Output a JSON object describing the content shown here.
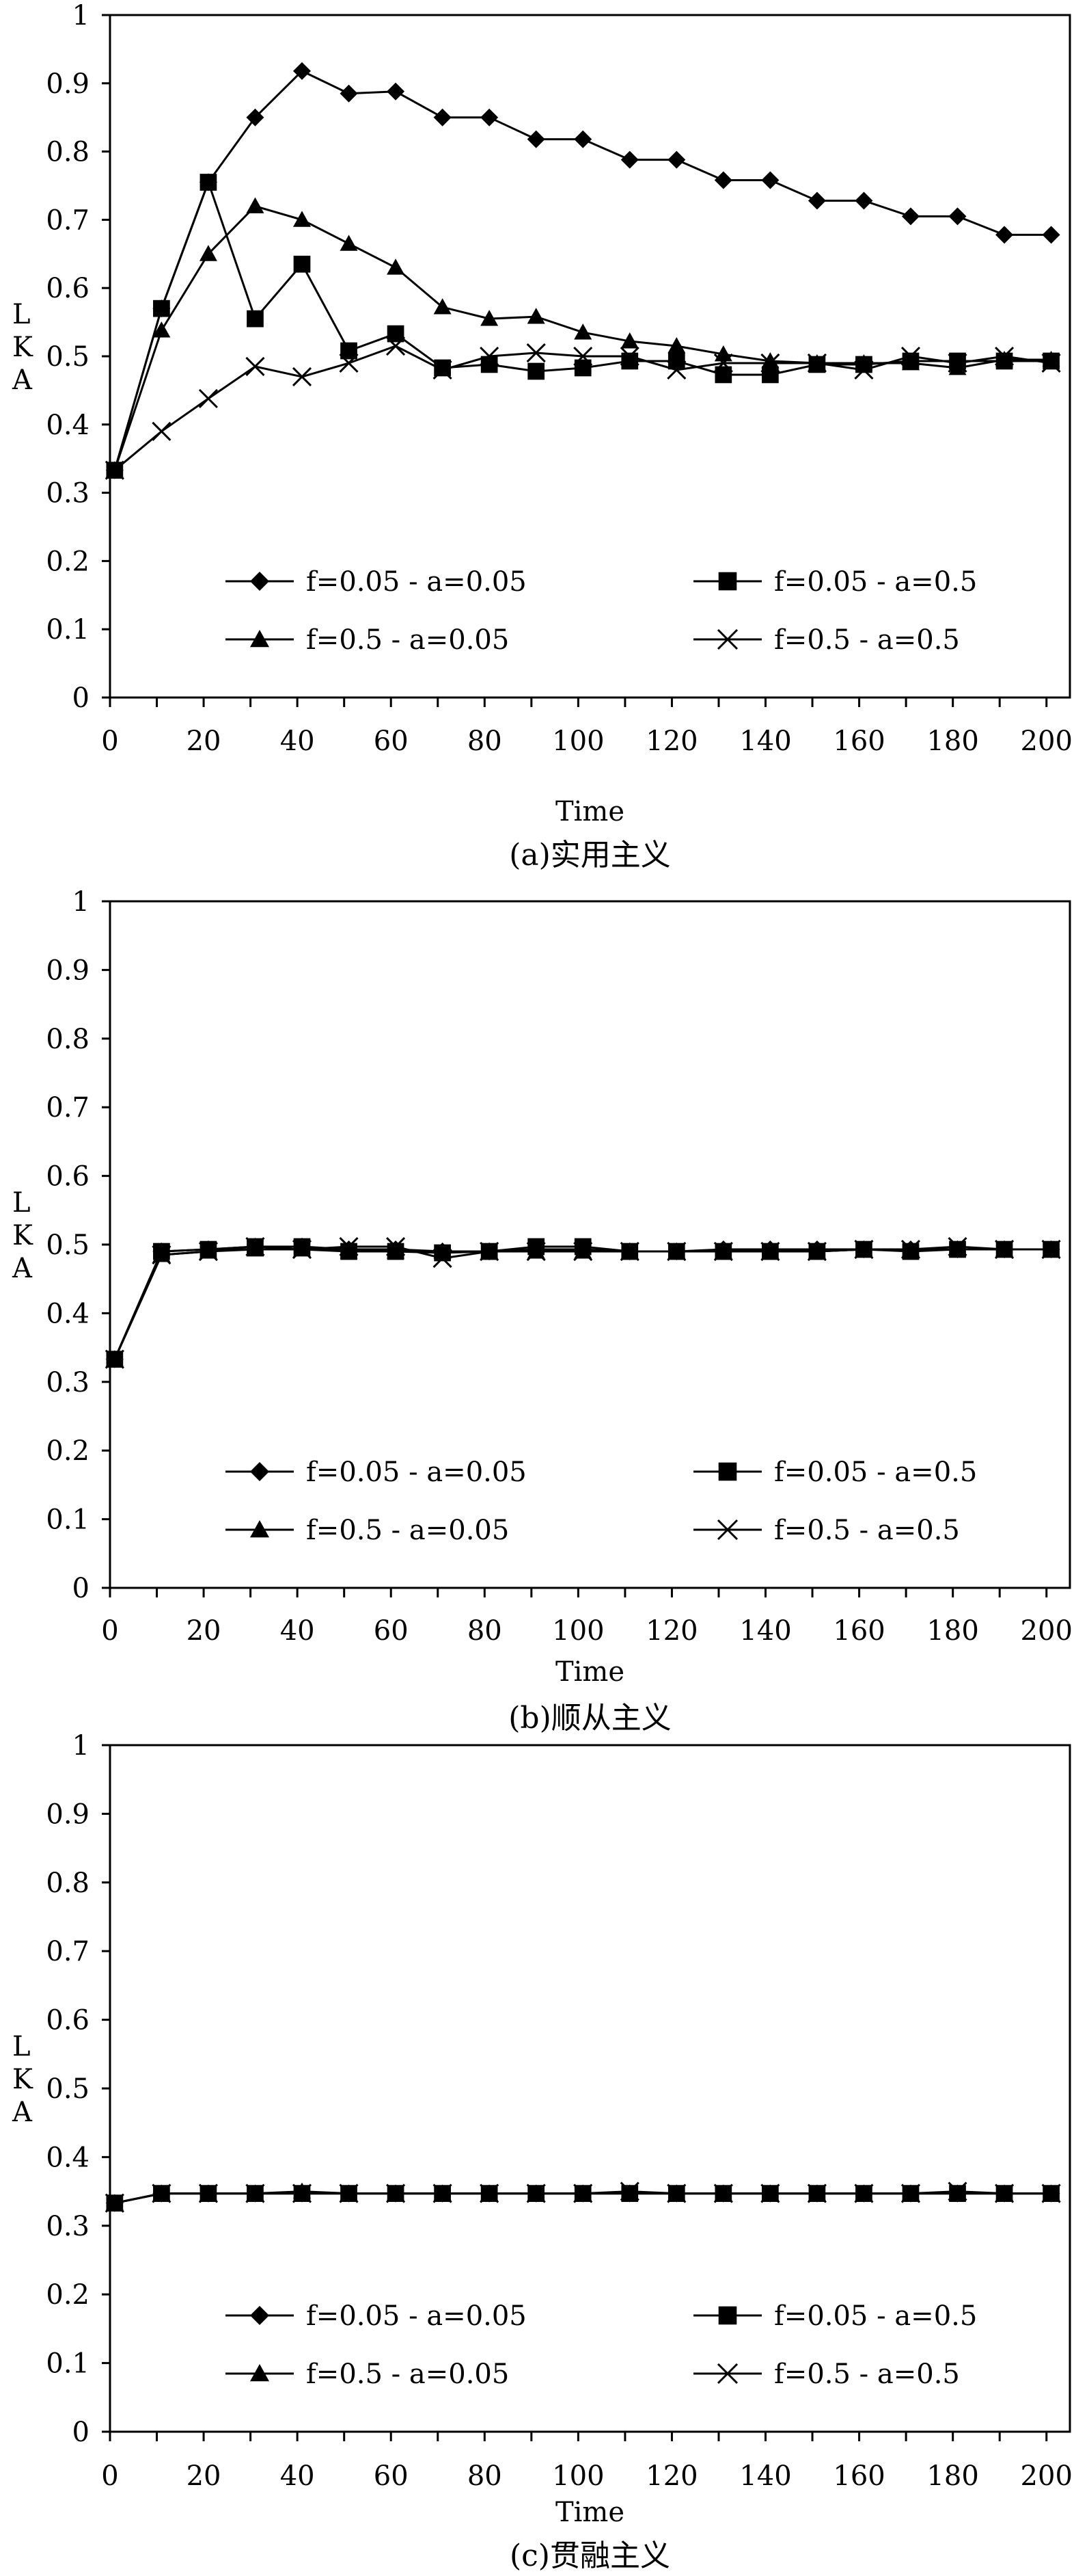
{
  "chart_data": [
    {
      "type": "line",
      "caption": "(a)实用主义",
      "xlabel": "Time",
      "ylabel": "LKA",
      "xlim": [
        0,
        205
      ],
      "ylim": [
        0,
        1
      ],
      "x_ticks": [
        "0",
        "20",
        "40",
        "60",
        "80",
        "100",
        "120",
        "140",
        "160",
        "180",
        "200"
      ],
      "y_ticks": [
        "0",
        "0.1",
        "0.2",
        "0.3",
        "0.4",
        "0.5",
        "0.6",
        "0.7",
        "0.8",
        "0.9",
        "1"
      ],
      "x": [
        1,
        11,
        21,
        31,
        41,
        51,
        61,
        71,
        81,
        91,
        101,
        111,
        121,
        131,
        141,
        151,
        161,
        171,
        181,
        191,
        201
      ],
      "legend_placement": "bottom-inside",
      "series": [
        {
          "name": "f=0.05 - a=0.05",
          "marker": "diamond",
          "values": [
            0.333,
            0.57,
            0.755,
            0.85,
            0.918,
            0.885,
            0.888,
            0.85,
            0.85,
            0.818,
            0.818,
            0.788,
            0.788,
            0.758,
            0.758,
            0.728,
            0.728,
            0.705,
            0.705,
            0.678,
            0.678
          ]
        },
        {
          "name": "f=0.05 - a=0.5",
          "marker": "square",
          "values": [
            0.333,
            0.57,
            0.755,
            0.555,
            0.635,
            0.508,
            0.533,
            0.483,
            0.488,
            0.478,
            0.483,
            0.493,
            0.493,
            0.473,
            0.473,
            0.488,
            0.488,
            0.493,
            0.493,
            0.493,
            0.493
          ]
        },
        {
          "name": "f=0.5 - a=0.05",
          "marker": "triangle",
          "values": [
            0.333,
            0.538,
            0.65,
            0.72,
            0.7,
            0.665,
            0.63,
            0.572,
            0.555,
            0.558,
            0.535,
            0.522,
            0.515,
            0.503,
            0.493,
            0.49,
            0.49,
            0.49,
            0.483,
            0.495,
            0.495
          ]
        },
        {
          "name": "f=0.5 - a=0.5",
          "marker": "x",
          "values": [
            0.333,
            0.39,
            0.438,
            0.485,
            0.47,
            0.49,
            0.515,
            0.48,
            0.5,
            0.505,
            0.5,
            0.5,
            0.48,
            0.49,
            0.49,
            0.49,
            0.48,
            0.5,
            0.49,
            0.5,
            0.49
          ]
        }
      ]
    },
    {
      "type": "line",
      "caption": "(b)顺从主义",
      "xlabel": "Time",
      "ylabel": "LKA",
      "xlim": [
        0,
        205
      ],
      "ylim": [
        0,
        1
      ],
      "x_ticks": [
        "0",
        "20",
        "40",
        "60",
        "80",
        "100",
        "120",
        "140",
        "160",
        "180",
        "200"
      ],
      "y_ticks": [
        "0",
        "0.1",
        "0.2",
        "0.3",
        "0.4",
        "0.5",
        "0.6",
        "0.7",
        "0.8",
        "0.9",
        "1"
      ],
      "x": [
        1,
        11,
        21,
        31,
        41,
        51,
        61,
        71,
        81,
        91,
        101,
        111,
        121,
        131,
        141,
        151,
        161,
        171,
        181,
        191,
        201
      ],
      "legend_placement": "bottom-inside",
      "series": [
        {
          "name": "f=0.05 - a=0.05",
          "marker": "diamond",
          "values": [
            0.333,
            0.49,
            0.493,
            0.497,
            0.497,
            0.493,
            0.493,
            0.49,
            0.49,
            0.493,
            0.493,
            0.49,
            0.49,
            0.493,
            0.493,
            0.493,
            0.493,
            0.493,
            0.493,
            0.493,
            0.493
          ]
        },
        {
          "name": "f=0.05 - a=0.5",
          "marker": "square",
          "values": [
            0.333,
            0.49,
            0.493,
            0.497,
            0.497,
            0.49,
            0.49,
            0.488,
            0.49,
            0.497,
            0.497,
            0.49,
            0.49,
            0.49,
            0.49,
            0.49,
            0.493,
            0.49,
            0.493,
            0.493,
            0.493
          ]
        },
        {
          "name": "f=0.5 - a=0.05",
          "marker": "triangle",
          "values": [
            0.333,
            0.485,
            0.49,
            0.493,
            0.493,
            0.49,
            0.49,
            0.49,
            0.49,
            0.49,
            0.49,
            0.49,
            0.49,
            0.49,
            0.49,
            0.49,
            0.493,
            0.493,
            0.493,
            0.493,
            0.493
          ]
        },
        {
          "name": "f=0.5 - a=0.5",
          "marker": "x",
          "values": [
            0.333,
            0.485,
            0.49,
            0.497,
            0.493,
            0.497,
            0.497,
            0.48,
            0.49,
            0.49,
            0.49,
            0.49,
            0.49,
            0.49,
            0.49,
            0.49,
            0.493,
            0.493,
            0.497,
            0.493,
            0.493
          ]
        }
      ]
    },
    {
      "type": "line",
      "caption": "(c)贯融主义",
      "xlabel": "Time",
      "ylabel": "LKA",
      "xlim": [
        0,
        205
      ],
      "ylim": [
        0,
        1
      ],
      "x_ticks": [
        "0",
        "20",
        "40",
        "60",
        "80",
        "100",
        "120",
        "140",
        "160",
        "180",
        "200"
      ],
      "y_ticks": [
        "0",
        "0.1",
        "0.2",
        "0.3",
        "0.4",
        "0.5",
        "0.6",
        "0.7",
        "0.8",
        "0.9",
        "1"
      ],
      "x": [
        1,
        11,
        21,
        31,
        41,
        51,
        61,
        71,
        81,
        91,
        101,
        111,
        121,
        131,
        141,
        151,
        161,
        171,
        181,
        191,
        201
      ],
      "legend_placement": "bottom-inside",
      "series": [
        {
          "name": "f=0.05 - a=0.05",
          "marker": "diamond",
          "values": [
            0.333,
            0.347,
            0.347,
            0.347,
            0.347,
            0.347,
            0.347,
            0.347,
            0.347,
            0.347,
            0.347,
            0.347,
            0.347,
            0.347,
            0.347,
            0.347,
            0.347,
            0.347,
            0.347,
            0.347,
            0.347
          ]
        },
        {
          "name": "f=0.05 - a=0.5",
          "marker": "square",
          "values": [
            0.333,
            0.347,
            0.347,
            0.347,
            0.347,
            0.347,
            0.347,
            0.347,
            0.347,
            0.347,
            0.347,
            0.347,
            0.347,
            0.347,
            0.347,
            0.347,
            0.347,
            0.347,
            0.347,
            0.347,
            0.347
          ]
        },
        {
          "name": "f=0.5 - a=0.05",
          "marker": "triangle",
          "values": [
            0.333,
            0.347,
            0.347,
            0.347,
            0.35,
            0.347,
            0.347,
            0.347,
            0.347,
            0.347,
            0.347,
            0.347,
            0.347,
            0.347,
            0.347,
            0.347,
            0.347,
            0.347,
            0.347,
            0.347,
            0.347
          ]
        },
        {
          "name": "f=0.5 - a=0.5",
          "marker": "x",
          "values": [
            0.333,
            0.347,
            0.347,
            0.347,
            0.347,
            0.347,
            0.347,
            0.347,
            0.347,
            0.347,
            0.347,
            0.35,
            0.347,
            0.347,
            0.347,
            0.347,
            0.347,
            0.347,
            0.35,
            0.347,
            0.347
          ]
        }
      ]
    }
  ]
}
